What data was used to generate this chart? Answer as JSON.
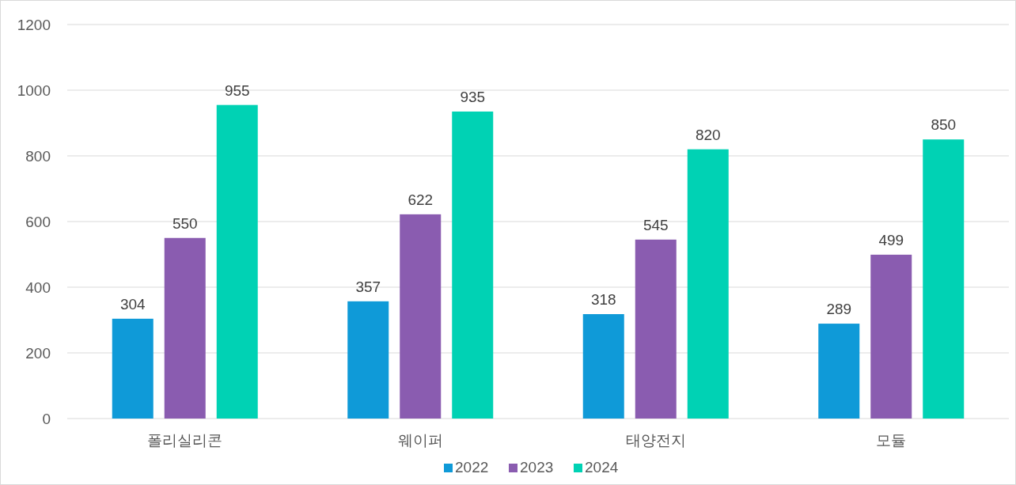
{
  "chart_data": {
    "type": "bar",
    "categories": [
      "폴리실리콘",
      "웨이퍼",
      "태양전지",
      "모듈"
    ],
    "series": [
      {
        "name": "2022",
        "color": "#0f9ad8",
        "values": [
          304,
          357,
          318,
          289
        ]
      },
      {
        "name": "2023",
        "color": "#8a5cb0",
        "values": [
          550,
          622,
          545,
          499
        ]
      },
      {
        "name": "2024",
        "color": "#00d2b4",
        "values": [
          955,
          935,
          820,
          850
        ]
      }
    ],
    "ylim": [
      0,
      1200
    ],
    "yticks": [
      0,
      200,
      400,
      600,
      800,
      1000,
      1200
    ],
    "grid": "y",
    "legend": "bottom",
    "data_labels": true
  }
}
